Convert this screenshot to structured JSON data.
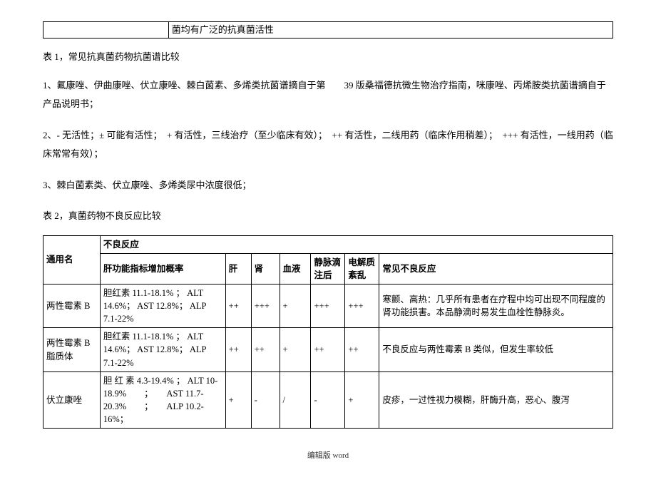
{
  "topRow": {
    "c1": "",
    "c2": "菌均有广泛的抗真菌活性"
  },
  "title1": "表 1，常见抗真菌药物抗菌谱比较",
  "notes": {
    "n1": "1、氟康唑、伊曲康唑、伏立康唑、棘白菌素、多烯类抗菌谱摘自于第　　39 版桑福德抗微生物治疗指南，咪康唑、丙烯胺类抗菌谱摘自于产品说明书；",
    "n2": "2、- 无活性；± 可能有活性；　+ 有活性，三线治疗（至少临床有效）；　++ 有活性，二线用药（临床作用稍差）；　+++ 有活性，一线用药（临床常常有效）；",
    "n3": "3、棘白菌素类、伏立康唑、多烯类尿中浓度很低；"
  },
  "title2": "表 2，真菌药物不良反应比较",
  "head": {
    "name": "通用名",
    "adrTop": "不良反应",
    "liver": "肝功能指标增加概率",
    "g": "肝",
    "k": "肾",
    "blood": "血液",
    "iv": "静脉滴注后",
    "elec": "电解质紊乱",
    "adr": "常见不良反应"
  },
  "rows": [
    {
      "name": "两性霉素 B",
      "liver": "胆红素 11.1-18.1% ； ALT 14.6%； AST 12.8%； ALP 7.1-22%",
      "g": "++",
      "k": "+++",
      "blood": "+",
      "iv": "+++",
      "elec": "+++",
      "adr": "寒颤、高热：几乎所有患者在疗程中均可出现不同程度的肾功能损害。本品静滴时易发生血栓性静脉炎。"
    },
    {
      "name": "两性霉素 B 脂质体",
      "liver": "胆红素 11.1-18.1% ； ALT 14.6%； AST 12.8%； ALP 7.1-22%",
      "g": "++",
      "k": "++",
      "blood": "+",
      "iv": "++",
      "elec": "++",
      "adr": "不良反应与两性霉素 B 类似，但发生率较低"
    },
    {
      "name": "伏立康唑",
      "liver": "胆 红 素 4.3-19.4% ； ALT 10-18.9%　　；　　AST 11.7-20.3%　　；　　ALP 10.2-16%；",
      "g": "+",
      "k": "-",
      "blood": "/",
      "iv": "-",
      "elec": "+",
      "adr": "皮疹，一过性视力模糊，肝酶升高，恶心、腹泻"
    }
  ],
  "footer": "编辑版 word"
}
